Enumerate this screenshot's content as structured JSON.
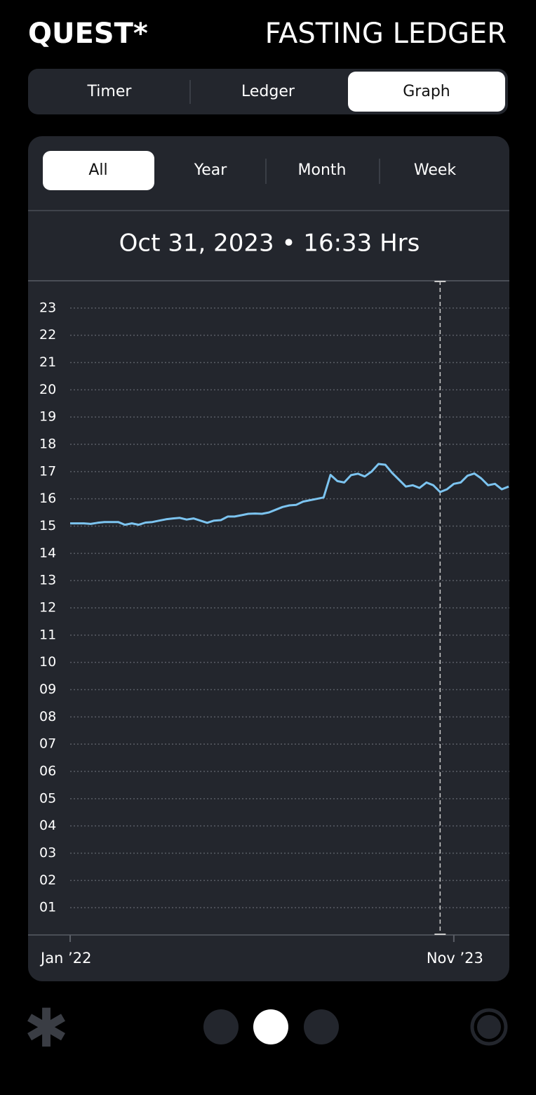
{
  "header": {
    "logo": "QUEST*",
    "title": "FASTING LEDGER"
  },
  "tabs": [
    "Timer",
    "Ledger",
    "Graph"
  ],
  "ranges": [
    "All",
    "Year",
    "Month",
    "Week"
  ],
  "readout": "Oct 31, 2023 • 16:33 Hrs",
  "chart_data": {
    "type": "line",
    "categories": [
      "Jan ’22",
      null,
      null,
      null,
      null,
      null,
      null,
      null,
      null,
      null,
      null,
      null,
      null,
      null,
      null,
      null,
      null,
      null,
      null,
      null,
      null,
      null,
      null,
      null,
      null,
      null,
      null,
      null,
      null,
      null,
      null,
      null,
      null,
      null,
      null,
      null,
      null,
      null,
      null,
      null,
      null,
      null,
      null,
      null,
      null,
      null,
      null,
      null,
      null,
      null,
      null,
      null,
      null,
      null,
      null,
      null,
      "Nov ’23",
      null,
      null,
      null,
      null,
      null,
      null,
      null,
      null
    ],
    "values": [
      15.1,
      15.1,
      15.1,
      15.08,
      15.12,
      15.15,
      15.15,
      15.15,
      15.05,
      15.1,
      15.05,
      15.13,
      15.15,
      15.2,
      15.25,
      15.28,
      15.3,
      15.24,
      15.28,
      15.2,
      15.12,
      15.2,
      15.22,
      15.35,
      15.35,
      15.4,
      15.45,
      15.46,
      15.45,
      15.5,
      15.6,
      15.7,
      15.76,
      15.78,
      15.9,
      15.95,
      16.0,
      16.05,
      16.88,
      16.65,
      16.6,
      16.87,
      16.92,
      16.82,
      17.0,
      17.28,
      17.25,
      16.95,
      16.7,
      16.45,
      16.5,
      16.4,
      16.6,
      16.5,
      16.25,
      16.35,
      16.55,
      16.6,
      16.85,
      16.93,
      16.75,
      16.5,
      16.55,
      16.35,
      16.45
    ],
    "color": "#7cc4f0",
    "ylim": [
      0,
      24
    ],
    "yticks": [
      {
        "value": 1,
        "label": "01"
      },
      {
        "value": 2,
        "label": "02"
      },
      {
        "value": 3,
        "label": "03"
      },
      {
        "value": 4,
        "label": "04"
      },
      {
        "value": 5,
        "label": "05"
      },
      {
        "value": 6,
        "label": "06"
      },
      {
        "value": 7,
        "label": "07"
      },
      {
        "value": 8,
        "label": "08"
      },
      {
        "value": 9,
        "label": "09"
      },
      10,
      11,
      12,
      13,
      14,
      15,
      16,
      17,
      18,
      19,
      20,
      21,
      22,
      23
    ],
    "grid": true
  }
}
